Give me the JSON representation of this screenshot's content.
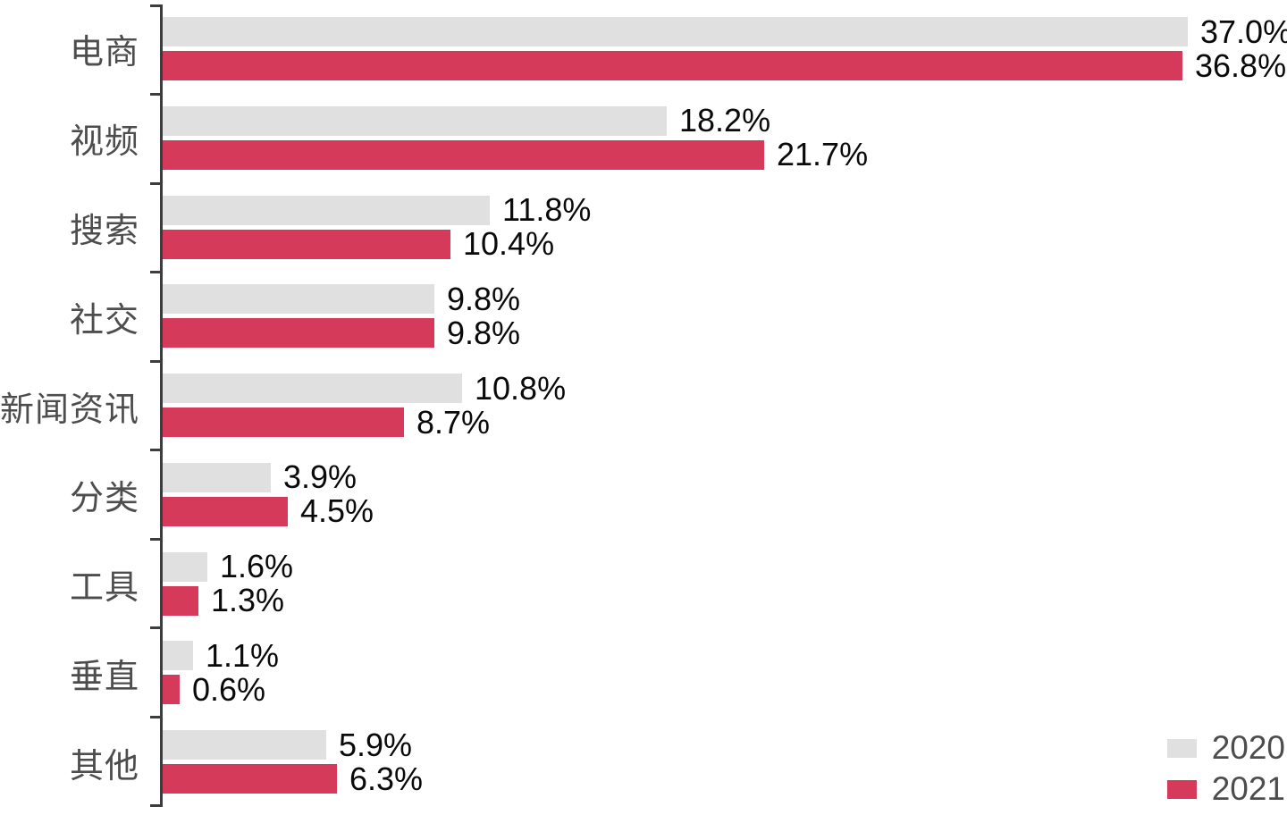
{
  "chart_data": {
    "type": "bar",
    "orientation": "horizontal",
    "title": "",
    "xlabel": "",
    "ylabel": "",
    "categories": [
      "电商",
      "视频",
      "搜索",
      "社交",
      "新闻资讯",
      "分类",
      "工具",
      "垂直",
      "其他"
    ],
    "series": [
      {
        "name": "2020",
        "color": "#E0E0E0",
        "values": [
          37.0,
          18.2,
          11.8,
          9.8,
          10.8,
          3.9,
          1.6,
          1.1,
          5.9
        ]
      },
      {
        "name": "2021",
        "color": "#D63A5A",
        "values": [
          36.8,
          21.7,
          10.4,
          9.8,
          8.7,
          4.5,
          1.3,
          0.6,
          6.3
        ]
      }
    ],
    "value_labels": {
      "2020": [
        "37.0%",
        "18.2%",
        "11.8%",
        "9.8%",
        "10.8%",
        "3.9%",
        "1.6%",
        "1.1%",
        "5.9%"
      ],
      "2021": [
        "36.8%",
        "21.7%",
        "10.4%",
        "9.8%",
        "8.7%",
        "4.5%",
        "1.3%",
        "0.6%",
        "6.3%"
      ]
    },
    "value_suffix": "%",
    "xlim": [
      0,
      40
    ],
    "grid": false,
    "legend_position": "bottom-right",
    "colors": {
      "axis": "#3D3D3D",
      "tick": "#3D3D3D",
      "category_label": "#4D4D4D",
      "value_label": "#0A0A0A",
      "legend_label": "#4D4D4D",
      "background": "#FFFFFF"
    }
  }
}
